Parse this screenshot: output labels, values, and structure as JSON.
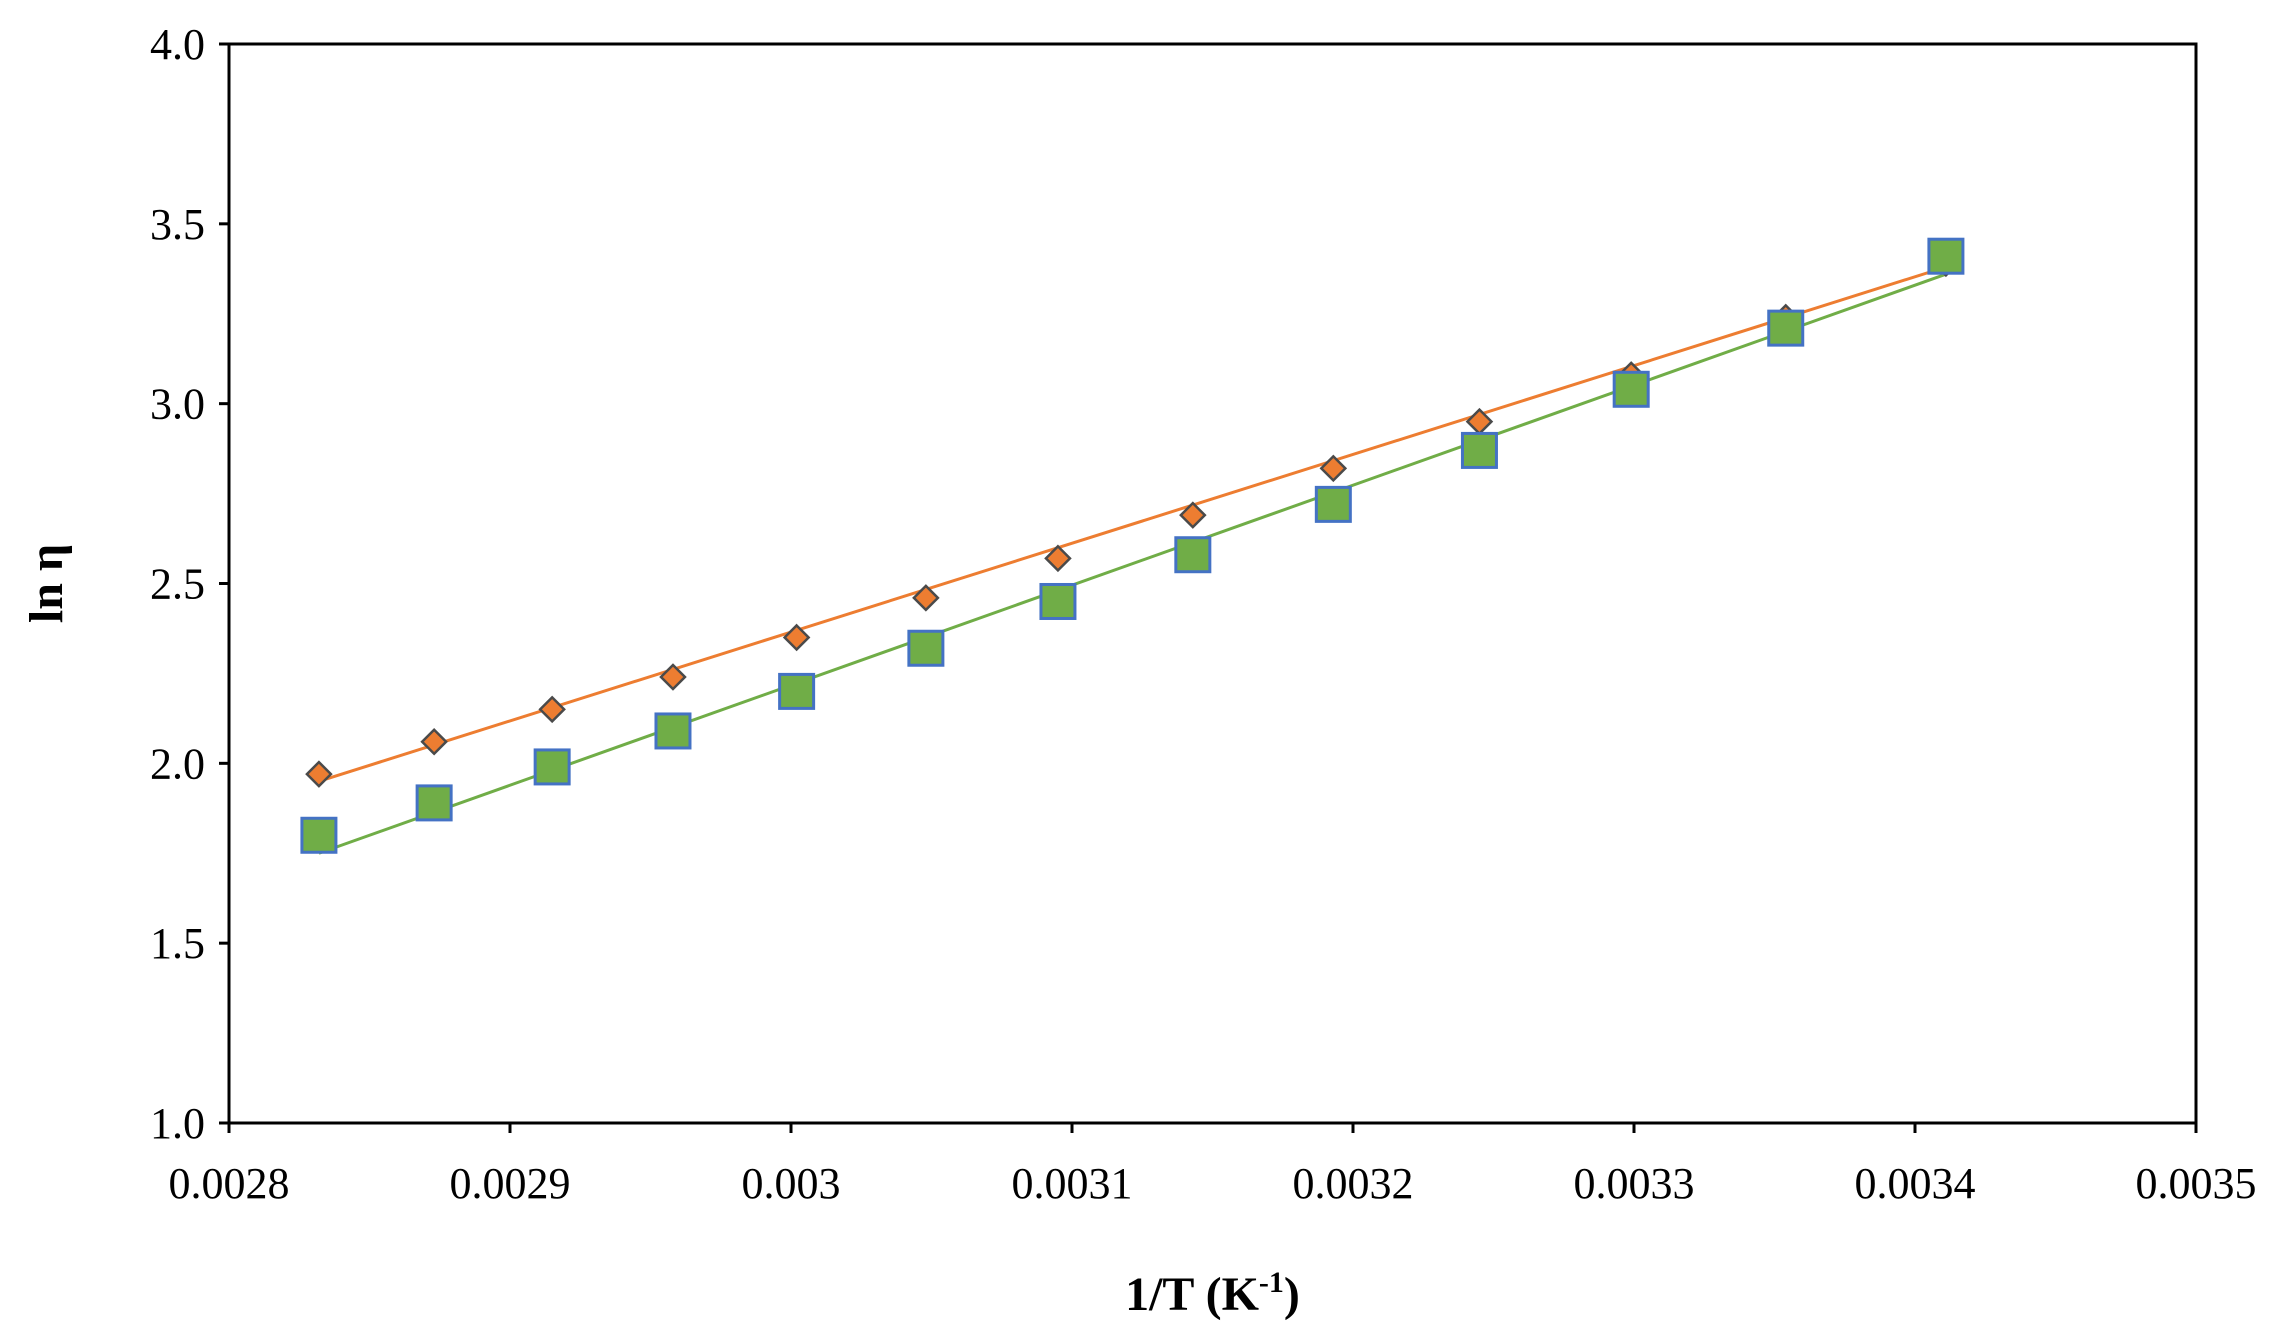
{
  "chart_data": {
    "type": "scatter",
    "title": "",
    "xlabel": "1/T (K",
    "xlabel_sup": "-1",
    "xlabel_suffix": ")",
    "ylabel": "ln η",
    "xlim": [
      0.0028,
      0.0035
    ],
    "ylim": [
      1.0,
      4.0
    ],
    "x_ticks": [
      {
        "value": 0.0028,
        "label": "0.0028"
      },
      {
        "value": 0.0029,
        "label": "0.0029"
      },
      {
        "value": 0.003,
        "label": "0.003"
      },
      {
        "value": 0.0031,
        "label": "0.0031"
      },
      {
        "value": 0.0032,
        "label": "0.0032"
      },
      {
        "value": 0.0033,
        "label": "0.0033"
      },
      {
        "value": 0.0034,
        "label": "0.0034"
      },
      {
        "value": 0.0035,
        "label": "0.0035"
      }
    ],
    "y_ticks": [
      {
        "value": 1.0,
        "label": "1.0"
      },
      {
        "value": 1.5,
        "label": "1.5"
      },
      {
        "value": 2.0,
        "label": "2.0"
      },
      {
        "value": 2.5,
        "label": "2.5"
      },
      {
        "value": 3.0,
        "label": "3.0"
      },
      {
        "value": 3.5,
        "label": "3.5"
      },
      {
        "value": 4.0,
        "label": "4.0"
      }
    ],
    "grid": false,
    "legend": "none",
    "series": [
      {
        "marker": "diamond",
        "marker_fill": "#ed7d31",
        "marker_stroke": "#4a4a4a",
        "x": [
          0.002832,
          0.002873,
          0.002915,
          0.002958,
          0.003002,
          0.003048,
          0.003095,
          0.003143,
          0.003193,
          0.003245,
          0.003299,
          0.003354,
          0.003411
        ],
        "y": [
          1.97,
          2.06,
          2.15,
          2.24,
          2.35,
          2.46,
          2.57,
          2.69,
          2.82,
          2.95,
          3.08,
          3.24,
          3.39
        ],
        "fit_line": {
          "color": "#ed7d31",
          "x": [
            0.002832,
            0.003411
          ],
          "y": [
            1.95,
            3.38
          ]
        }
      },
      {
        "marker": "square",
        "marker_fill": "#70ad47",
        "marker_stroke": "#4472c4",
        "x": [
          0.002832,
          0.002873,
          0.002915,
          0.002958,
          0.003002,
          0.003048,
          0.003095,
          0.003143,
          0.003193,
          0.003245,
          0.003299,
          0.003354,
          0.003411
        ],
        "y": [
          1.8,
          1.89,
          1.99,
          2.09,
          2.2,
          2.32,
          2.45,
          2.58,
          2.72,
          2.87,
          3.04,
          3.21,
          3.41
        ],
        "fit_line": {
          "color": "#70ad47",
          "x": [
            0.002832,
            0.003411
          ],
          "y": [
            1.75,
            3.36
          ]
        }
      }
    ]
  }
}
